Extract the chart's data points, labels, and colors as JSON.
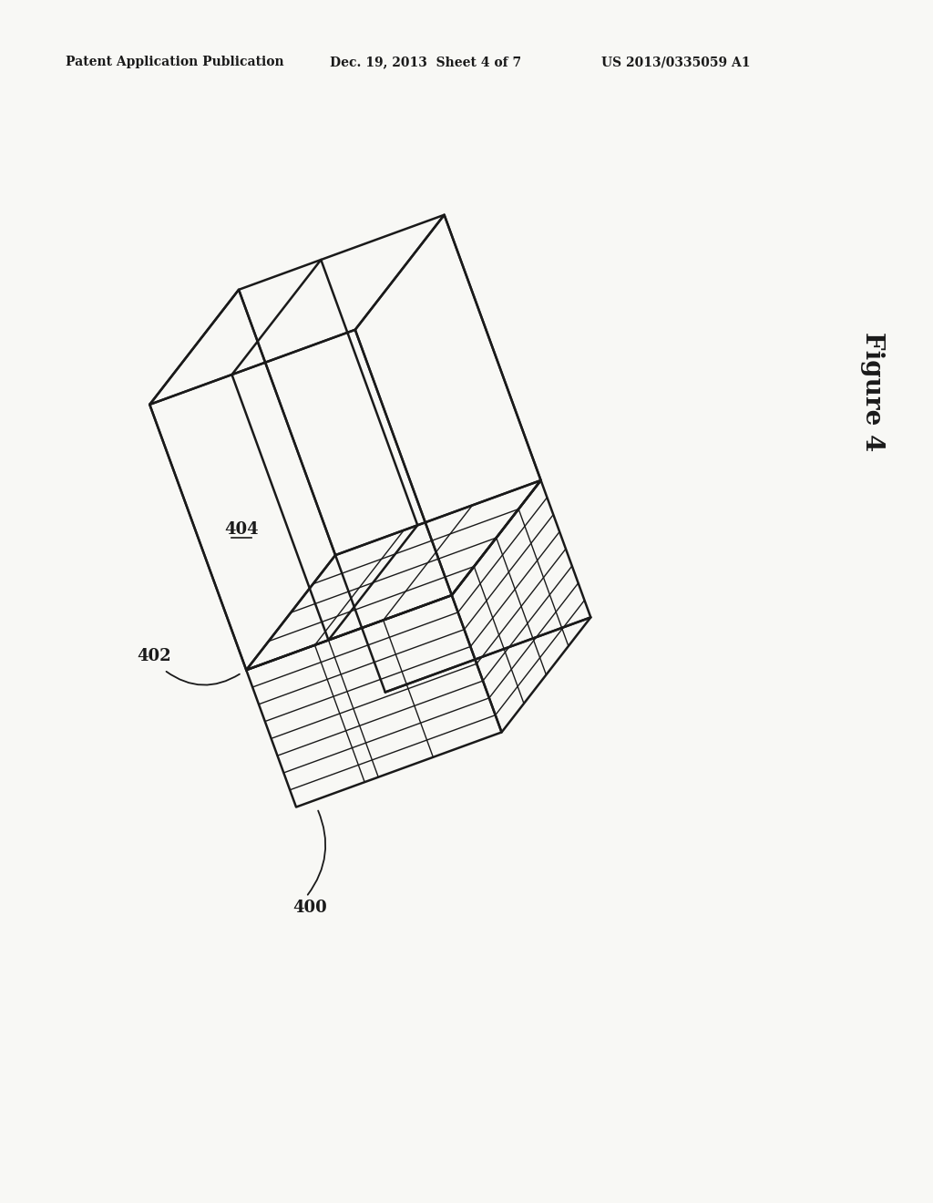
{
  "bg_color": "#f8f8f5",
  "line_color": "#1a1a1a",
  "header_left": "Patent Application Publication",
  "header_mid": "Dec. 19, 2013  Sheet 4 of 7",
  "header_right": "US 2013/0335059 A1",
  "figure_label": "Figure 4",
  "label_400": "400",
  "label_402": "402",
  "label_404": "404",
  "lw_main": 1.8,
  "lw_thin": 1.0,
  "lw_header": 1.1,
  "header_fontsize": 10,
  "fig4_fontsize": 20,
  "label_fontsize": 13
}
